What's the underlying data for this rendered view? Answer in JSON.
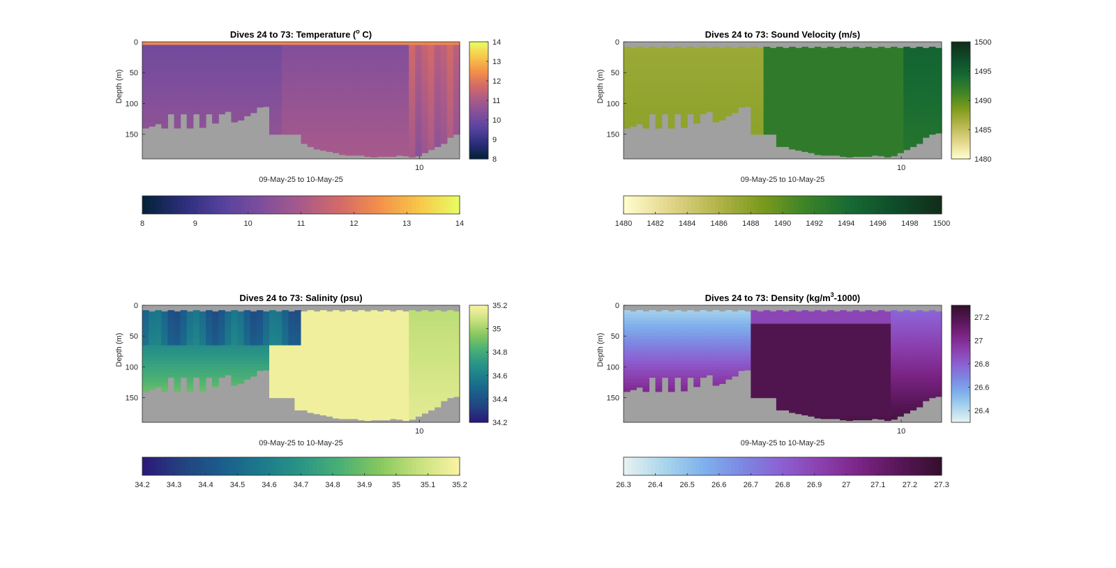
{
  "figure": {
    "background": "#ffffff",
    "mask_color": "#a0a0a0"
  },
  "chart_data": [
    {
      "type": "heatmap",
      "title_main": "Dives 24 to 73: Temperature (",
      "title_sup": "o",
      "title_tail": " C)",
      "xlabel": "09-May-25 to 10-May-25",
      "ylabel": "Depth (m)",
      "x_tick_labels": [
        "10"
      ],
      "y_ticks": [
        0,
        50,
        100,
        150
      ],
      "ylim": [
        0,
        190
      ],
      "clim": [
        8,
        14
      ],
      "colormap": "thermal",
      "right_colorbar_ticks": [
        "14",
        "13",
        "12",
        "11",
        "10",
        "9",
        "8"
      ],
      "bottom_colorbar_ticks": [
        "8",
        "9",
        "10",
        "11",
        "12",
        "13",
        "14"
      ],
      "dives": 50,
      "bottom_depth_m": [
        140,
        137,
        133,
        140,
        117,
        140,
        117,
        140,
        117,
        139,
        117,
        132,
        117,
        113,
        130,
        127,
        120,
        115,
        106,
        105,
        150,
        150,
        150,
        150,
        150,
        165,
        170,
        174,
        176,
        178,
        180,
        183,
        184,
        184,
        184,
        186,
        187,
        186,
        186,
        186,
        184,
        185,
        187,
        185,
        180,
        175,
        170,
        165,
        155,
        150
      ],
      "surface_gap_m": [
        0,
        0,
        0,
        0,
        0,
        0,
        0,
        0,
        0,
        0,
        0,
        0,
        0,
        0,
        0,
        0,
        0,
        0,
        0,
        0,
        0,
        0,
        0,
        0,
        0,
        0,
        0,
        0,
        0,
        0,
        0,
        0,
        0,
        0,
        0,
        0,
        0,
        0,
        0,
        0,
        0,
        0,
        0,
        0,
        0,
        0,
        0,
        0,
        0,
        0
      ],
      "profile_note": ""
    },
    {
      "type": "heatmap",
      "title_main": "Dives 24 to 73: Sound Velocity (m/s)",
      "title_sup": "",
      "title_tail": "",
      "xlabel": "09-May-25 to 10-May-25",
      "ylabel": "Depth (m)",
      "x_tick_labels": [
        "10"
      ],
      "y_ticks": [
        0,
        50,
        100,
        150
      ],
      "ylim": [
        0,
        190
      ],
      "clim": [
        1480,
        1500
      ],
      "colormap": "speed",
      "right_colorbar_ticks": [
        "1500",
        "1495",
        "1490",
        "1485",
        "1480"
      ],
      "bottom_colorbar_ticks": [
        "1480",
        "1482",
        "1484",
        "1486",
        "1488",
        "1490",
        "1492",
        "1494",
        "1496",
        "1498",
        "1500"
      ],
      "dives": 50,
      "bottom_depth_m": [
        140,
        137,
        133,
        140,
        117,
        140,
        117,
        140,
        117,
        139,
        117,
        132,
        117,
        113,
        130,
        127,
        120,
        115,
        106,
        105,
        150,
        150,
        150,
        150,
        170,
        170,
        174,
        176,
        178,
        180,
        183,
        184,
        184,
        184,
        186,
        187,
        186,
        186,
        186,
        184,
        185,
        187,
        185,
        180,
        175,
        170,
        165,
        155,
        150,
        148
      ],
      "surface_gap_m": [
        8,
        10,
        8,
        10,
        8,
        10,
        8,
        10,
        8,
        10,
        8,
        10,
        8,
        10,
        8,
        10,
        8,
        10,
        8,
        10,
        8,
        10,
        8,
        10,
        8,
        10,
        8,
        10,
        8,
        10,
        8,
        10,
        8,
        10,
        8,
        10,
        8,
        10,
        8,
        10,
        8,
        10,
        8,
        10,
        8,
        10,
        8,
        10,
        8,
        10
      ],
      "profile_note": ""
    },
    {
      "type": "heatmap",
      "title_main": "Dives 24 to 73: Salinity (psu)",
      "title_sup": "",
      "title_tail": "",
      "xlabel": "09-May-25 to 10-May-25",
      "ylabel": "Depth (m)",
      "x_tick_labels": [
        "10"
      ],
      "y_ticks": [
        0,
        50,
        100,
        150
      ],
      "ylim": [
        0,
        190
      ],
      "clim": [
        34.2,
        35.2
      ],
      "colormap": "haline",
      "right_colorbar_ticks": [
        "35.2",
        "35",
        "34.8",
        "34.6",
        "34.4",
        "34.2"
      ],
      "bottom_colorbar_ticks": [
        "34.2",
        "34.3",
        "34.4",
        "34.5",
        "34.6",
        "34.7",
        "34.8",
        "34.9",
        "35",
        "35.1",
        "35.2"
      ],
      "dives": 50,
      "bottom_depth_m": [
        140,
        137,
        133,
        140,
        117,
        140,
        117,
        140,
        117,
        139,
        117,
        132,
        117,
        113,
        130,
        127,
        120,
        115,
        106,
        105,
        150,
        150,
        150,
        150,
        170,
        170,
        174,
        176,
        178,
        180,
        183,
        184,
        184,
        184,
        186,
        187,
        186,
        186,
        186,
        184,
        185,
        187,
        185,
        180,
        175,
        170,
        165,
        155,
        150,
        148
      ],
      "surface_gap_m": [
        8,
        10,
        8,
        10,
        8,
        10,
        8,
        10,
        8,
        10,
        8,
        10,
        8,
        10,
        8,
        10,
        8,
        10,
        8,
        10,
        8,
        10,
        8,
        10,
        8,
        10,
        8,
        10,
        8,
        10,
        8,
        10,
        8,
        10,
        8,
        10,
        8,
        10,
        8,
        10,
        8,
        10,
        8,
        10,
        8,
        10,
        8,
        10,
        8,
        10
      ],
      "profile_note": ""
    },
    {
      "type": "heatmap",
      "title_main": "Dives 24 to 73: Density (kg/m",
      "title_sup": "3",
      "title_tail": "-1000)",
      "xlabel": "09-May-25 to 10-May-25",
      "ylabel": "Depth (m)",
      "x_tick_labels": [
        "10"
      ],
      "y_ticks": [
        0,
        50,
        100,
        150
      ],
      "ylim": [
        0,
        190
      ],
      "clim": [
        26.3,
        27.3
      ],
      "colormap": "dense",
      "right_colorbar_ticks": [
        "27.2",
        "27",
        "26.8",
        "26.6",
        "26.4"
      ],
      "bottom_colorbar_ticks": [
        "26.3",
        "26.4",
        "26.5",
        "26.6",
        "26.7",
        "26.8",
        "26.9",
        "27",
        "27.1",
        "27.2",
        "27.3"
      ],
      "dives": 50,
      "bottom_depth_m": [
        140,
        137,
        133,
        140,
        117,
        140,
        117,
        140,
        117,
        139,
        117,
        132,
        117,
        113,
        130,
        127,
        120,
        115,
        106,
        105,
        150,
        150,
        150,
        150,
        170,
        170,
        174,
        176,
        178,
        180,
        183,
        184,
        184,
        184,
        186,
        187,
        186,
        186,
        186,
        184,
        185,
        187,
        185,
        180,
        175,
        170,
        165,
        155,
        150,
        148
      ],
      "surface_gap_m": [
        8,
        10,
        8,
        10,
        8,
        10,
        8,
        10,
        8,
        10,
        8,
        10,
        8,
        10,
        8,
        10,
        8,
        10,
        8,
        10,
        8,
        10,
        8,
        10,
        8,
        10,
        8,
        10,
        8,
        10,
        8,
        10,
        8,
        10,
        8,
        10,
        8,
        10,
        8,
        10,
        8,
        10,
        8,
        10,
        8,
        10,
        8,
        10,
        8,
        10
      ],
      "profile_note": ""
    }
  ]
}
